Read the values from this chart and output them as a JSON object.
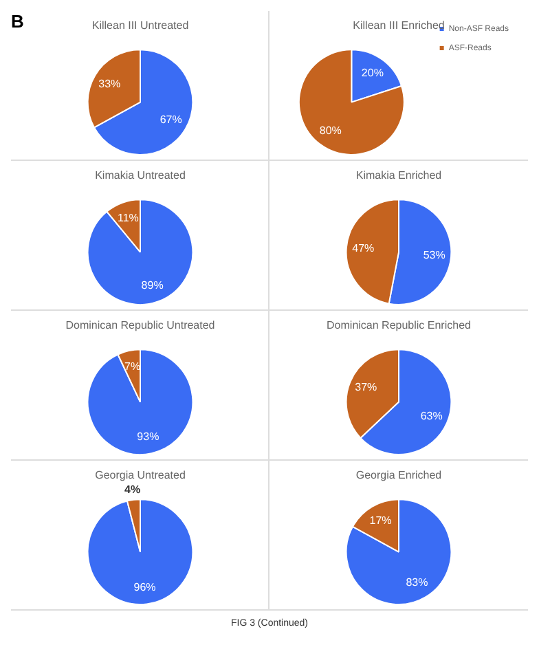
{
  "chart_data": [
    {
      "type": "pie",
      "title": "Killean III Untreated",
      "categories": [
        null,
        null
      ],
      "values": [
        67,
        33
      ],
      "value_labels": [
        "67%",
        "33%"
      ],
      "colors": [
        "#3a6cf4",
        "#c5631f"
      ],
      "legend": false,
      "annotations": [
        "B"
      ]
    },
    {
      "type": "pie",
      "title": "Killean III Enriched",
      "categories": [
        "Non-ASF Reads",
        "ASF-Reads"
      ],
      "values": [
        20,
        80
      ],
      "value_labels": [
        "20%",
        "80%"
      ],
      "colors": [
        "#3a6cf4",
        "#c5631f"
      ],
      "legend": "top right"
    },
    {
      "type": "pie",
      "title": "Kimakia Untreated",
      "categories": [
        null,
        null
      ],
      "values": [
        89,
        11
      ],
      "value_labels": [
        "89%",
        "11%"
      ],
      "colors": [
        "#3a6cf4",
        "#c5631f"
      ],
      "legend": false
    },
    {
      "type": "pie",
      "title": "Kimakia Enriched",
      "categories": [
        null,
        null
      ],
      "values": [
        53,
        47
      ],
      "value_labels": [
        "53%",
        "47%"
      ],
      "colors": [
        "#3a6cf4",
        "#c5631f"
      ],
      "legend": false
    },
    {
      "type": "pie",
      "title": "Dominican Republic Untreated",
      "categories": [
        null,
        null
      ],
      "values": [
        93,
        7
      ],
      "value_labels": [
        "93%",
        "7%"
      ],
      "colors": [
        "#3a6cf4",
        "#c5631f"
      ],
      "legend": false
    },
    {
      "type": "pie",
      "title": "Dominican Republic Enriched",
      "categories": [
        null,
        null
      ],
      "values": [
        63,
        37
      ],
      "value_labels": [
        "63%",
        "37%"
      ],
      "colors": [
        "#3a6cf4",
        "#c5631f"
      ],
      "legend": false
    },
    {
      "type": "pie",
      "title": "Georgia Untreated",
      "categories": [
        null,
        null
      ],
      "values": [
        96,
        4
      ],
      "value_labels": [
        "96%",
        "4%"
      ],
      "colors": [
        "#3a6cf4",
        "#c5631f"
      ],
      "legend": false
    },
    {
      "type": "pie",
      "title": "Georgia Enriched",
      "categories": [
        null,
        null
      ],
      "values": [
        83,
        17
      ],
      "value_labels": [
        "83%",
        "17%"
      ],
      "colors": [
        "#3a6cf4",
        "#c5631f"
      ],
      "legend": false,
      "annotations": [
        "FIG 3 (Continued)"
      ]
    }
  ]
}
